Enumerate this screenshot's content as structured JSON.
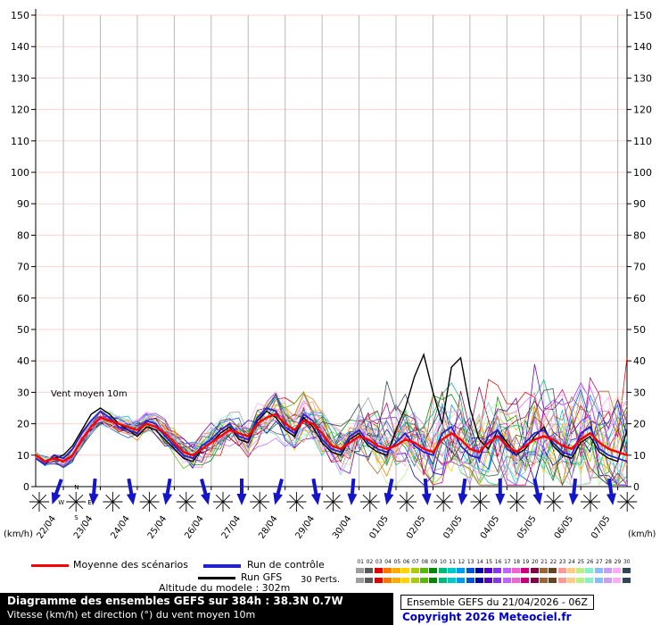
{
  "chart": {
    "yticks": [
      0,
      10,
      20,
      30,
      40,
      50,
      60,
      70,
      80,
      90,
      100,
      110,
      120,
      130,
      140,
      150
    ],
    "dates": [
      "22/04",
      "23/04",
      "24/04",
      "25/04",
      "26/04",
      "27/04",
      "28/04",
      "29/04",
      "30/04",
      "01/05",
      "02/05",
      "03/05",
      "04/05",
      "05/05",
      "06/05",
      "07/05"
    ],
    "colors": {
      "grid_h": "#ffd2d2",
      "grid_v": "#b9b9b9",
      "axis": "#000000",
      "arrow": "#1515c8"
    }
  },
  "chart_data": {
    "type": "line",
    "title": "Vent moyen 10m",
    "ylabel": "(km/h)",
    "ylim": [
      0,
      155
    ],
    "x_start_hour": 0,
    "x_end_hour": 384,
    "step_hours": 6,
    "categories": [
      "22/04",
      "23/04",
      "24/04",
      "25/04",
      "26/04",
      "27/04",
      "28/04",
      "29/04",
      "30/04",
      "01/05",
      "02/05",
      "03/05",
      "04/05",
      "05/05",
      "06/05",
      "07/05"
    ],
    "series": [
      {
        "name": "Moyenne des scénarios",
        "color": "#ff0000",
        "width": 2.4,
        "values": [
          10,
          8,
          9,
          8,
          10,
          15,
          19,
          22,
          21,
          20,
          19,
          18,
          20,
          19,
          17,
          14,
          11,
          10,
          12,
          14,
          16,
          18,
          17,
          16,
          20,
          22,
          23,
          20,
          18,
          21,
          20,
          17,
          13,
          12,
          14,
          16,
          15,
          13,
          12,
          13,
          15,
          14,
          12,
          11,
          15,
          17,
          15,
          12,
          11,
          14,
          16,
          13,
          11,
          13,
          15,
          16,
          15,
          13,
          12,
          15,
          17,
          14,
          12,
          11,
          10
        ]
      },
      {
        "name": "Run de contrôle",
        "color": "#2222cc",
        "width": 1.8,
        "values": [
          9,
          7,
          10,
          9,
          12,
          17,
          21,
          24,
          22,
          19,
          18,
          17,
          21,
          20,
          16,
          13,
          10,
          9,
          13,
          15,
          18,
          20,
          16,
          15,
          22,
          25,
          24,
          19,
          17,
          23,
          21,
          15,
          12,
          11,
          16,
          18,
          14,
          12,
          11,
          14,
          17,
          13,
          11,
          10,
          17,
          19,
          13,
          10,
          9,
          16,
          18,
          12,
          10,
          14,
          17,
          18,
          14,
          11,
          10,
          17,
          19,
          12,
          10,
          9,
          8
        ]
      },
      {
        "name": "Run GFS",
        "color": "#000000",
        "width": 1.4,
        "values": [
          10,
          8,
          9,
          10,
          13,
          18,
          23,
          25,
          23,
          20,
          18,
          16,
          19,
          18,
          15,
          12,
          9,
          8,
          12,
          14,
          17,
          19,
          15,
          14,
          21,
          24,
          22,
          18,
          16,
          22,
          19,
          14,
          11,
          10,
          15,
          17,
          13,
          11,
          10,
          18,
          25,
          35,
          42,
          30,
          20,
          38,
          41,
          25,
          15,
          12,
          18,
          14,
          10,
          12,
          16,
          19,
          13,
          10,
          9,
          14,
          16,
          11,
          9,
          8,
          18
        ]
      }
    ],
    "ensemble": {
      "count": 30,
      "spread_start": 1.5,
      "spread_end": 16,
      "seed": 1234,
      "colors": [
        "#9e9e9e",
        "#5a5a5a",
        "#e00000",
        "#ff7700",
        "#ffaa00",
        "#ffd400",
        "#aacc00",
        "#55bb00",
        "#008800",
        "#00bb77",
        "#00c8c8",
        "#0099ee",
        "#0055dd",
        "#0000aa",
        "#5500cc",
        "#8833ee",
        "#bb66ff",
        "#ee66cc",
        "#cc0077",
        "#880044",
        "#996633",
        "#664422",
        "#ff9999",
        "#ffcc88",
        "#bbee88",
        "#88eecc",
        "#88bbff",
        "#cc99ff",
        "#ffaaff",
        "#334455"
      ]
    }
  },
  "wind_row": {
    "arrow_rotations": [
      20,
      5,
      -10,
      10,
      -15,
      0,
      15,
      -10,
      5,
      12,
      -5,
      8,
      0,
      -12,
      6,
      -8
    ],
    "compass_labels": {
      "n": "N",
      "e": "E",
      "s": "S",
      "w": "W"
    }
  },
  "legend": {
    "mean_label": "Moyenne des scénarios",
    "control_label": "Run de contrôle",
    "gfs_label": "Run GFS",
    "perts_label": "30 Perts.",
    "member_numbers": [
      "01",
      "02",
      "03",
      "04",
      "05",
      "06",
      "07",
      "08",
      "09",
      "10",
      "11",
      "12",
      "13",
      "14",
      "15",
      "16",
      "17",
      "18",
      "19",
      "20",
      "21",
      "22",
      "23",
      "24",
      "25",
      "26",
      "27",
      "28",
      "29",
      "30"
    ]
  },
  "altitude_note": "Altitude du modele : 302m",
  "footer": {
    "title": "Diagramme des ensembles GEFS sur 384h : 38.3N 0.7W",
    "subtitle": "Vitesse (km/h) et direction (°) du vent moyen 10m",
    "run_info": "Ensemble GEFS du 21/04/2026 - 06Z",
    "copyright": "Copyright 2026 Meteociel.fr"
  }
}
